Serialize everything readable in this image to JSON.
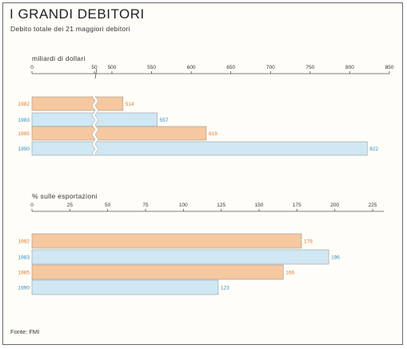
{
  "title": "I GRANDI DEBITORI",
  "subtitle": "Debito totale dei 21 maggiori debitori",
  "source": "Fonte: FMI",
  "colors": {
    "orange": "#f6c8a0",
    "orange_text": "#e07a2a",
    "blue": "#cfe8f3",
    "blue_text": "#2f8ec4",
    "axis": "#555555"
  },
  "chart_data": [
    {
      "type": "bar",
      "orientation": "horizontal",
      "axis_title": "miliardi di dollari",
      "axis_break": true,
      "xlim": [
        0,
        850
      ],
      "ticks": [
        0,
        50,
        500,
        550,
        600,
        650,
        700,
        750,
        800,
        850
      ],
      "categories": [
        "1982",
        "1983",
        "1985",
        "1990"
      ],
      "values": [
        514,
        557,
        619,
        822
      ],
      "value_labels": [
        "514",
        "557",
        "619",
        "822"
      ]
    },
    {
      "type": "bar",
      "orientation": "horizontal",
      "axis_title": "% sulle esportazioni",
      "axis_break": false,
      "xlim": [
        0,
        225
      ],
      "ticks": [
        0,
        25,
        50,
        75,
        100,
        125,
        150,
        175,
        200,
        225
      ],
      "categories": [
        "1982",
        "1983",
        "1985",
        "1990"
      ],
      "values": [
        178,
        196,
        166,
        123
      ],
      "value_labels": [
        "178",
        "196",
        "166",
        "123"
      ]
    }
  ]
}
